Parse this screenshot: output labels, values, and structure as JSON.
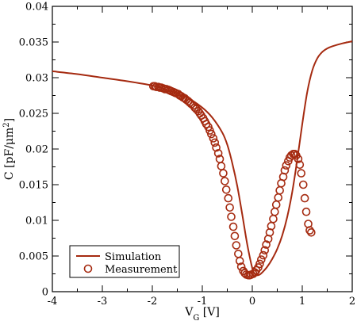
{
  "chart_data": {
    "type": "scatter",
    "xlabel": {
      "main": "V",
      "sub": "G",
      "rest": " [V]"
    },
    "ylabel": {
      "main": "C [pF/μm",
      "sup": "2",
      "rest": "]"
    },
    "xlim": [
      -4,
      2
    ],
    "ylim": [
      0,
      0.04
    ],
    "xticks": [
      "-4",
      "-3",
      "-2",
      "-1",
      "0",
      "1",
      "2"
    ],
    "yticks": [
      "0",
      "0.005",
      "0.01",
      "0.015",
      "0.02",
      "0.025",
      "0.03",
      "0.035",
      "0.04"
    ],
    "grid": false,
    "legend_position": "bottom-left",
    "colors": {
      "series": "#a52a10"
    },
    "series": [
      {
        "name": "Simulation",
        "style": "line",
        "x": [
          -4.0,
          -3.5,
          -3.0,
          -2.5,
          -2.0,
          -1.75,
          -1.5,
          -1.25,
          -1.0,
          -0.8,
          -0.6,
          -0.5,
          -0.4,
          -0.3,
          -0.2,
          -0.1,
          0.0,
          0.05,
          0.1,
          0.15,
          0.2,
          0.3,
          0.4,
          0.5,
          0.6,
          0.7,
          0.8,
          0.9,
          1.0,
          1.1,
          1.2,
          1.3,
          1.4,
          1.5,
          1.6,
          1.8,
          2.0
        ],
        "y": [
          0.0309,
          0.0305,
          0.03,
          0.0295,
          0.0289,
          0.0284,
          0.0278,
          0.027,
          0.0258,
          0.0244,
          0.0223,
          0.0206,
          0.018,
          0.0148,
          0.0108,
          0.0066,
          0.0033,
          0.0025,
          0.0023,
          0.0024,
          0.0027,
          0.0035,
          0.0046,
          0.006,
          0.0079,
          0.0105,
          0.014,
          0.0185,
          0.0235,
          0.028,
          0.031,
          0.0327,
          0.0336,
          0.0341,
          0.0344,
          0.0348,
          0.0351
        ]
      },
      {
        "name": "Measurement",
        "style": "markers",
        "x": [
          -1.98,
          -1.95,
          -1.92,
          -1.88,
          -1.85,
          -1.82,
          -1.78,
          -1.75,
          -1.72,
          -1.68,
          -1.65,
          -1.62,
          -1.58,
          -1.55,
          -1.52,
          -1.48,
          -1.45,
          -1.42,
          -1.38,
          -1.35,
          -1.32,
          -1.28,
          -1.25,
          -1.22,
          -1.18,
          -1.15,
          -1.12,
          -1.08,
          -1.05,
          -1.02,
          -0.98,
          -0.95,
          -0.92,
          -0.88,
          -0.85,
          -0.82,
          -0.78,
          -0.75,
          -0.72,
          -0.68,
          -0.65,
          -0.62,
          -0.58,
          -0.55,
          -0.52,
          -0.48,
          -0.45,
          -0.42,
          -0.38,
          -0.35,
          -0.32,
          -0.28,
          -0.25,
          -0.22,
          -0.18,
          -0.15,
          -0.12,
          -0.08,
          -0.05,
          -0.02,
          0.02,
          0.05,
          0.08,
          0.12,
          0.15,
          0.18,
          0.22,
          0.25,
          0.28,
          0.32,
          0.35,
          0.38,
          0.42,
          0.45,
          0.48,
          0.52,
          0.55,
          0.58,
          0.62,
          0.65,
          0.68,
          0.72,
          0.75,
          0.78,
          0.82,
          0.85,
          0.88,
          0.92,
          0.95,
          0.98,
          1.02,
          1.05,
          1.08,
          1.12,
          1.15,
          1.18
        ],
        "y": [
          0.0288,
          0.0288,
          0.0287,
          0.0287,
          0.0286,
          0.0286,
          0.0285,
          0.0284,
          0.0284,
          0.0283,
          0.0282,
          0.0281,
          0.028,
          0.0279,
          0.0278,
          0.0277,
          0.0275,
          0.0274,
          0.0272,
          0.0271,
          0.0269,
          0.0267,
          0.0265,
          0.0263,
          0.0261,
          0.0258,
          0.0256,
          0.0253,
          0.025,
          0.0247,
          0.0243,
          0.0239,
          0.0235,
          0.0231,
          0.0226,
          0.0221,
          0.0215,
          0.0209,
          0.0202,
          0.0194,
          0.0186,
          0.0176,
          0.0166,
          0.0155,
          0.0143,
          0.0131,
          0.0118,
          0.0105,
          0.0091,
          0.0078,
          0.0065,
          0.0053,
          0.0043,
          0.0035,
          0.0029,
          0.0026,
          0.0024,
          0.0023,
          0.0023,
          0.0024,
          0.0025,
          0.0027,
          0.003,
          0.0034,
          0.0039,
          0.0045,
          0.0051,
          0.0058,
          0.0066,
          0.0074,
          0.0083,
          0.0092,
          0.0102,
          0.0112,
          0.0122,
          0.0132,
          0.0142,
          0.0152,
          0.0161,
          0.017,
          0.0177,
          0.0183,
          0.0188,
          0.0191,
          0.0193,
          0.0193,
          0.0191,
          0.0186,
          0.0178,
          0.0166,
          0.015,
          0.0131,
          0.0112,
          0.0095,
          0.0086,
          0.0083
        ]
      }
    ]
  }
}
